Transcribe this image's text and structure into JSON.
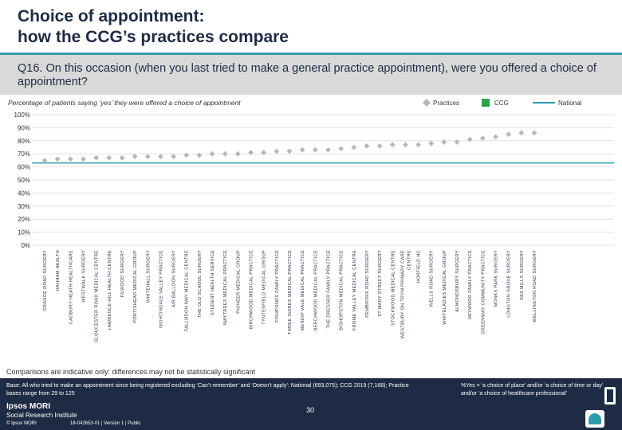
{
  "header": {
    "title_line1": "Choice of appointment:",
    "title_line2": "how the CCG’s practices compare"
  },
  "question": {
    "text": "Q16. On this occasion (when you last tried to make a general practice appointment), were you offered a choice of appointment?"
  },
  "subtitle": "Percentage of patients saying ‘yes’ they were offered a choice of appointment",
  "legend": {
    "practices": "Practices",
    "ccg": "CCG",
    "national": "National"
  },
  "colors": {
    "practice_marker": "#b8b8b8",
    "ccg": "#2aa34a",
    "national": "#2e9cab",
    "header_rule": "#2e9cab",
    "question_band": "#d9d9d9",
    "footer": "#1f2a44",
    "gridline": "#e2e2e2"
  },
  "chart_data": {
    "type": "scatter",
    "title": "",
    "ylabel": "",
    "xlabel": "",
    "ylim": [
      0,
      100
    ],
    "y_ticks": [
      "0%",
      "10%",
      "20%",
      "30%",
      "40%",
      "50%",
      "60%",
      "70%",
      "80%",
      "90%",
      "100%"
    ],
    "national_value": 63,
    "categories": [
      "GRANGE ROAD SURGERY",
      "HANHAM HEALTH",
      "CADBURY HEATH HEALTHCARE",
      "WESTWALK SURGERY",
      "GLOUCESTER ROAD MEDICAL CENTRE",
      "LAWRENCE HILL HEALTH CENTRE",
      "FILWOOD SURGERY",
      "PORTISHEAD MEDICAL GROUP",
      "WHITEHALL SURGERY",
      "NIGHTINGALE VALLEY PRACTICE",
      "AIR BALLOON SURGERY",
      "FALLODON WAY MEDICAL CENTRE",
      "THE OLD SCHOOL SURGERY",
      "STUDENT HEALTH SERVICE",
      "MAYTREES MEDICAL PRACTICE",
      "PIONEER MEDICAL GROUP",
      "BIRCHWOOD MEDICAL PRACTICE",
      "TYNTESFIELD MEDICAL GROUP",
      "FISHPONDS FAMILY PRACTICE",
      "THREE SHIRES MEDICAL PRACTICE",
      "MENDIP VALE MEDICAL PRACTICE",
      "BEECHWOOD MEDICAL PRACTICE",
      "THE DRESSER FAMILY PRACTICE",
      "BISHOPSTON MEDICAL PRACTICE",
      "FROME VALLEY MEDICAL CENTRE",
      "PEMBROKE ROAD SURGERY",
      "ST MARY STREET SURGERY",
      "STOCKWOOD MEDICAL CENTRE",
      "WESTBURY ON TRYM PRIMARY CARE CENTRE",
      "HORFIELD HC",
      "WELLS ROAD SURGERY",
      "WHITELADIES MEDICAL GROUP",
      "ALMONDSBURY SURGERY",
      "HEYWOOD FAMILY PRACTICE",
      "GREENWAY COMMUNITY PRACTICE",
      "MONKS PARK SURGERY",
      "LONGTON GROVE SURGERY",
      "SEA MILLS SURGERY",
      "WELLINGTON ROAD SURGERY"
    ],
    "values": [
      65,
      66,
      66,
      66,
      67,
      67,
      67,
      68,
      68,
      68,
      68,
      69,
      69,
      70,
      70,
      70,
      71,
      71,
      72,
      72,
      73,
      73,
      73,
      74,
      75,
      76,
      76,
      77,
      77,
      77,
      78,
      79,
      79,
      81,
      82,
      83,
      85,
      86,
      86
    ]
  },
  "caveat": "Comparisons are indicative only: differences may not be statistically significant",
  "footer": {
    "base_note": "Base: All who tried to make an appointment since being registered excluding ‘Can’t remember’ and ‘Doesn’t apply’: National (693,075); CCG 2019 (7,168); Practice bases range from 29 to 125",
    "yes_note": "%Yes = ‘a choice of place’ and/or ‘a choice of time or day’ and/or ‘a choice of healthcare professional’",
    "page_number": "30",
    "logo_main": "Ipsos MORI",
    "logo_sub": "Social Research Institute",
    "copyright": "© Ipsos MORI",
    "job_ref": "18-042653-01 | Version 1 | Public"
  }
}
